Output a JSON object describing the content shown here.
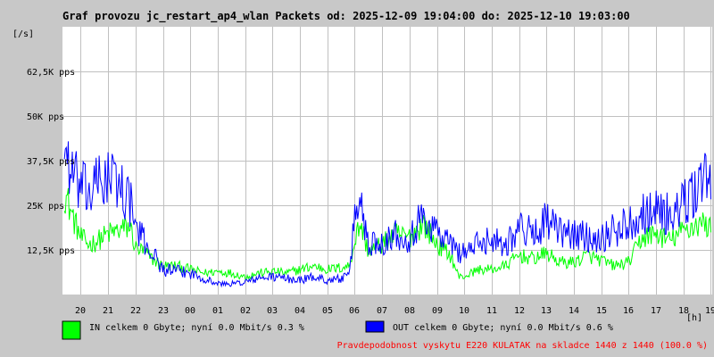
{
  "colors": {
    "background": "#c8c8c8",
    "plot_background": "#ffffff",
    "grid": "#c0c0c0",
    "in_series": "#00ff00",
    "out_series": "#0000ff",
    "note": "#ff0000"
  },
  "legend": {
    "in_text": "IN celkem 0 Gbyte; nyní   0.0 Mbit/s 0.3 %",
    "out_text": "OUT celkem 0 Gbyte; nyní   0.0 Mbit/s 0.6 %"
  },
  "note": "Pravdepodobnost vyskytu E220 KULATAK na skladce 1440 z 1440 (100.0 %)",
  "chart_data": {
    "type": "line",
    "title": "Graf provozu jc_restart_ap4_wlan Packets od: 2025-12-09 19:04:00 do: 2025-12-10 19:03:00",
    "ylabel": "[/s]",
    "xlabel": "[h]",
    "ylim": [
      0,
      75000
    ],
    "xlim": [
      19.333,
      43.05
    ],
    "x_tick_values": [
      20,
      21,
      22,
      23,
      24,
      25,
      26,
      27,
      28,
      29,
      30,
      31,
      32,
      33,
      34,
      35,
      36,
      37,
      38,
      39,
      40,
      41,
      42,
      43
    ],
    "x_tick_labels": [
      "20",
      "21",
      "22",
      "23",
      "00",
      "01",
      "02",
      "03",
      "04",
      "05",
      "06",
      "07",
      "08",
      "09",
      "10",
      "11",
      "12",
      "13",
      "14",
      "15",
      "16",
      "17",
      "18",
      "19"
    ],
    "y_tick_values": [
      12500,
      25000,
      37500,
      50000,
      62500
    ],
    "y_tick_labels": [
      "12,5K pps",
      "25K pps",
      "37,5K pps",
      "50K pps",
      "62,5K pps"
    ],
    "grid": true,
    "legend_position": "bottom",
    "series": [
      {
        "name": "IN",
        "color": "#00ff00",
        "x": [
          19.4,
          19.7,
          20.0,
          20.3,
          20.6,
          21.0,
          21.4,
          21.8,
          22.0,
          22.3,
          22.6,
          23.0,
          23.5,
          24.0,
          24.5,
          25.0,
          25.5,
          26.0,
          26.5,
          27.0,
          27.5,
          28.0,
          28.5,
          29.0,
          29.5,
          29.8,
          30.0,
          30.2,
          30.5,
          31.0,
          31.5,
          32.0,
          32.5,
          33.0,
          33.5,
          33.8,
          34.0,
          34.5,
          35.0,
          35.5,
          36.0,
          36.5,
          37.0,
          37.5,
          38.0,
          38.5,
          39.0,
          39.5,
          40.0,
          40.5,
          41.0,
          41.5,
          42.0,
          42.3,
          42.6,
          43.0
        ],
        "y": [
          29000,
          22000,
          16000,
          14000,
          15000,
          17000,
          18000,
          19000,
          13000,
          12000,
          10000,
          8000,
          8000,
          7000,
          6000,
          6500,
          6000,
          5000,
          6000,
          6500,
          6000,
          7000,
          8000,
          7000,
          7500,
          8000,
          15000,
          20000,
          12000,
          14000,
          17000,
          16000,
          20000,
          14000,
          11000,
          5000,
          5000,
          7000,
          7000,
          8000,
          11000,
          10000,
          11500,
          9000,
          9000,
          11000,
          9500,
          8000,
          9000,
          16000,
          17000,
          15000,
          18000,
          19000,
          20000,
          19000
        ]
      },
      {
        "name": "OUT",
        "color": "#0000ff",
        "x": [
          19.4,
          19.7,
          20.0,
          20.3,
          20.6,
          21.0,
          21.4,
          21.8,
          22.0,
          22.3,
          22.6,
          23.0,
          23.5,
          24.0,
          24.5,
          25.0,
          25.5,
          26.0,
          26.5,
          27.0,
          27.5,
          28.0,
          28.5,
          29.0,
          29.5,
          29.8,
          30.0,
          30.2,
          30.5,
          31.0,
          31.5,
          32.0,
          32.5,
          33.0,
          33.5,
          33.8,
          34.0,
          34.5,
          35.0,
          35.5,
          36.0,
          36.5,
          37.0,
          37.5,
          38.0,
          38.5,
          39.0,
          39.5,
          40.0,
          40.5,
          41.0,
          41.5,
          42.0,
          42.3,
          42.6,
          43.0
        ],
        "y": [
          42000,
          33000,
          30000,
          28000,
          31000,
          33000,
          31000,
          26000,
          19000,
          15000,
          12000,
          7000,
          6500,
          6000,
          4500,
          3000,
          3000,
          3500,
          4500,
          5000,
          4500,
          4000,
          5000,
          4000,
          4500,
          5000,
          22000,
          27000,
          14000,
          15000,
          17000,
          16000,
          22000,
          18000,
          14000,
          12000,
          12000,
          14000,
          16000,
          14000,
          19000,
          17000,
          21000,
          17000,
          17000,
          16000,
          16000,
          18000,
          20000,
          23000,
          24000,
          22000,
          25000,
          27000,
          32000,
          33000
        ]
      }
    ]
  }
}
